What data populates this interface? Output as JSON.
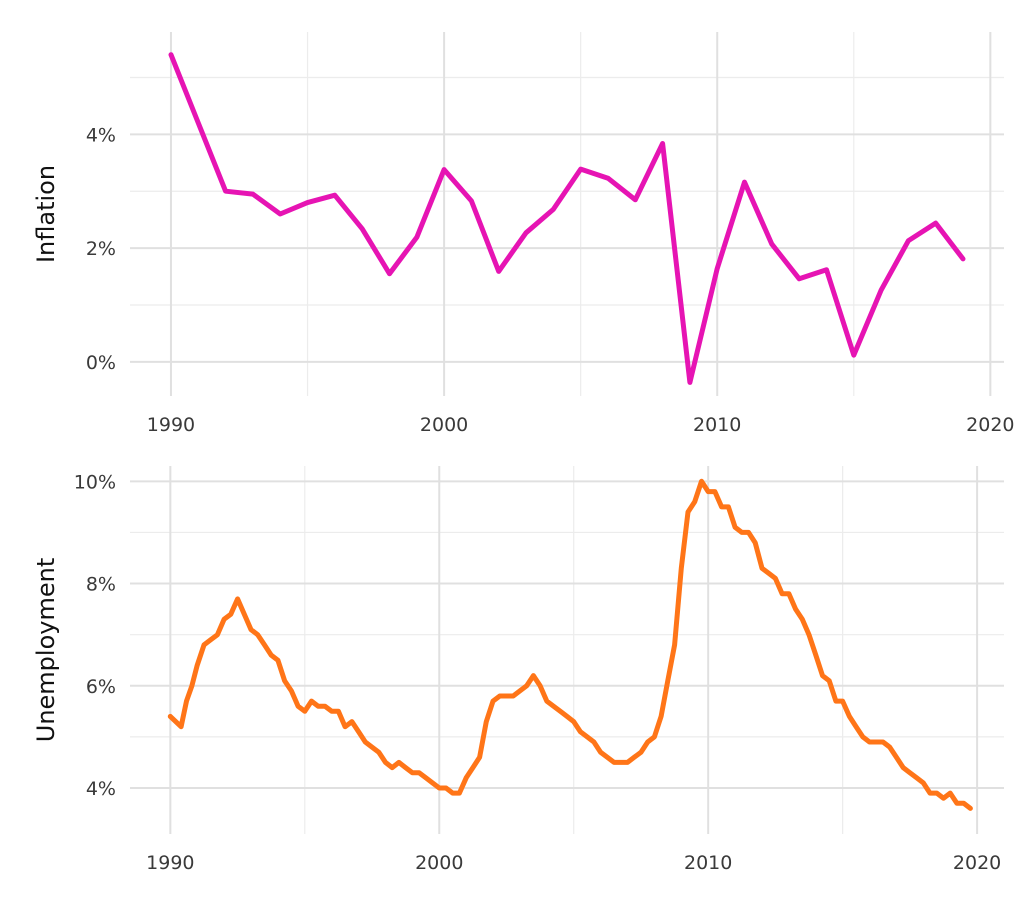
{
  "chart_data": [
    {
      "type": "line",
      "title": "",
      "xlabel": "",
      "ylabel": "Inflation",
      "xlim": [
        1988.5,
        2020.5
      ],
      "ylim": [
        -0.6,
        5.8
      ],
      "x_ticks": [
        1990,
        2000,
        2010,
        2020
      ],
      "x_tick_labels": [
        "1990",
        "2000",
        "2010",
        "2020"
      ],
      "y_ticks": [
        0,
        2,
        4
      ],
      "y_tick_labels": [
        "0%",
        "2%",
        "4%"
      ],
      "grid": true,
      "color": "#e614b3",
      "series": [
        {
          "x": [
            1990,
            1991,
            1992,
            1993,
            1994,
            1995,
            1996,
            1997,
            1998,
            1999,
            2000,
            2001,
            2002,
            2003,
            2004,
            2005,
            2006,
            2007,
            2008,
            2009,
            2010,
            2011,
            2012,
            2013,
            2014,
            2015,
            2016,
            2017,
            2018,
            2019
          ],
          "values": [
            5.4,
            4.2,
            3.0,
            2.95,
            2.6,
            2.8,
            2.93,
            2.34,
            1.55,
            2.19,
            3.38,
            2.83,
            1.59,
            2.27,
            2.68,
            3.39,
            3.23,
            2.85,
            3.84,
            -0.36,
            1.64,
            3.16,
            2.07,
            1.46,
            1.62,
            0.12,
            1.26,
            2.13,
            2.44,
            1.81
          ]
        }
      ]
    },
    {
      "type": "line",
      "title": "",
      "xlabel": "",
      "ylabel": "Unemployment",
      "xlim": [
        1988.5,
        2021
      ],
      "ylim": [
        3.1,
        10.3
      ],
      "x_ticks": [
        1990,
        2000,
        2010,
        2020
      ],
      "x_tick_labels": [
        "1990",
        "2000",
        "2010",
        "2020"
      ],
      "y_ticks": [
        4,
        6,
        8,
        10
      ],
      "y_tick_labels": [
        "4%",
        "6%",
        "8%",
        "10%"
      ],
      "grid": true,
      "color": "#ff7518",
      "series": [
        {
          "x": [
            1990.0,
            1990.2,
            1990.4,
            1990.6,
            1990.8,
            1991.0,
            1991.25,
            1991.5,
            1991.75,
            1992.0,
            1992.25,
            1992.5,
            1992.75,
            1993.0,
            1993.25,
            1993.5,
            1993.75,
            1994.0,
            1994.25,
            1994.5,
            1994.75,
            1995.0,
            1995.25,
            1995.5,
            1995.75,
            1996.0,
            1996.25,
            1996.5,
            1996.75,
            1997.0,
            1997.25,
            1997.5,
            1997.75,
            1998.0,
            1998.25,
            1998.5,
            1998.75,
            1999.0,
            1999.25,
            1999.5,
            1999.75,
            2000.0,
            2000.25,
            2000.5,
            2000.75,
            2001.0,
            2001.25,
            2001.5,
            2001.75,
            2002.0,
            2002.25,
            2002.5,
            2002.75,
            2003.0,
            2003.25,
            2003.5,
            2003.75,
            2004.0,
            2004.25,
            2004.5,
            2004.75,
            2005.0,
            2005.25,
            2005.5,
            2005.75,
            2006.0,
            2006.25,
            2006.5,
            2006.75,
            2007.0,
            2007.25,
            2007.5,
            2007.75,
            2008.0,
            2008.25,
            2008.5,
            2008.75,
            2009.0,
            2009.25,
            2009.5,
            2009.75,
            2010.0,
            2010.25,
            2010.5,
            2010.75,
            2011.0,
            2011.25,
            2011.5,
            2011.75,
            2012.0,
            2012.25,
            2012.5,
            2012.75,
            2013.0,
            2013.25,
            2013.5,
            2013.75,
            2014.0,
            2014.25,
            2014.5,
            2014.75,
            2015.0,
            2015.25,
            2015.5,
            2015.75,
            2016.0,
            2016.25,
            2016.5,
            2016.75,
            2017.0,
            2017.25,
            2017.5,
            2017.75,
            2018.0,
            2018.25,
            2018.5,
            2018.75,
            2019.0,
            2019.25,
            2019.5,
            2019.75
          ],
          "values": [
            5.4,
            5.3,
            5.2,
            5.7,
            6.0,
            6.4,
            6.8,
            6.9,
            7.0,
            7.3,
            7.4,
            7.7,
            7.4,
            7.1,
            7.0,
            6.8,
            6.6,
            6.5,
            6.1,
            5.9,
            5.6,
            5.5,
            5.7,
            5.6,
            5.6,
            5.5,
            5.5,
            5.2,
            5.3,
            5.1,
            4.9,
            4.8,
            4.7,
            4.5,
            4.4,
            4.5,
            4.4,
            4.3,
            4.3,
            4.2,
            4.1,
            4.0,
            4.0,
            3.9,
            3.9,
            4.2,
            4.4,
            4.6,
            5.3,
            5.7,
            5.8,
            5.8,
            5.8,
            5.9,
            6.0,
            6.2,
            6.0,
            5.7,
            5.6,
            5.5,
            5.4,
            5.3,
            5.1,
            5.0,
            4.9,
            4.7,
            4.6,
            4.5,
            4.5,
            4.5,
            4.6,
            4.7,
            4.9,
            5.0,
            5.4,
            6.1,
            6.8,
            8.3,
            9.4,
            9.6,
            10.0,
            9.8,
            9.8,
            9.5,
            9.5,
            9.1,
            9.0,
            9.0,
            8.8,
            8.3,
            8.2,
            8.1,
            7.8,
            7.8,
            7.5,
            7.3,
            7.0,
            6.6,
            6.2,
            6.1,
            5.7,
            5.7,
            5.4,
            5.2,
            5.0,
            4.9,
            4.9,
            4.9,
            4.8,
            4.6,
            4.4,
            4.3,
            4.2,
            4.1,
            3.9,
            3.9,
            3.8,
            3.9,
            3.7,
            3.7,
            3.6
          ]
        }
      ]
    }
  ]
}
